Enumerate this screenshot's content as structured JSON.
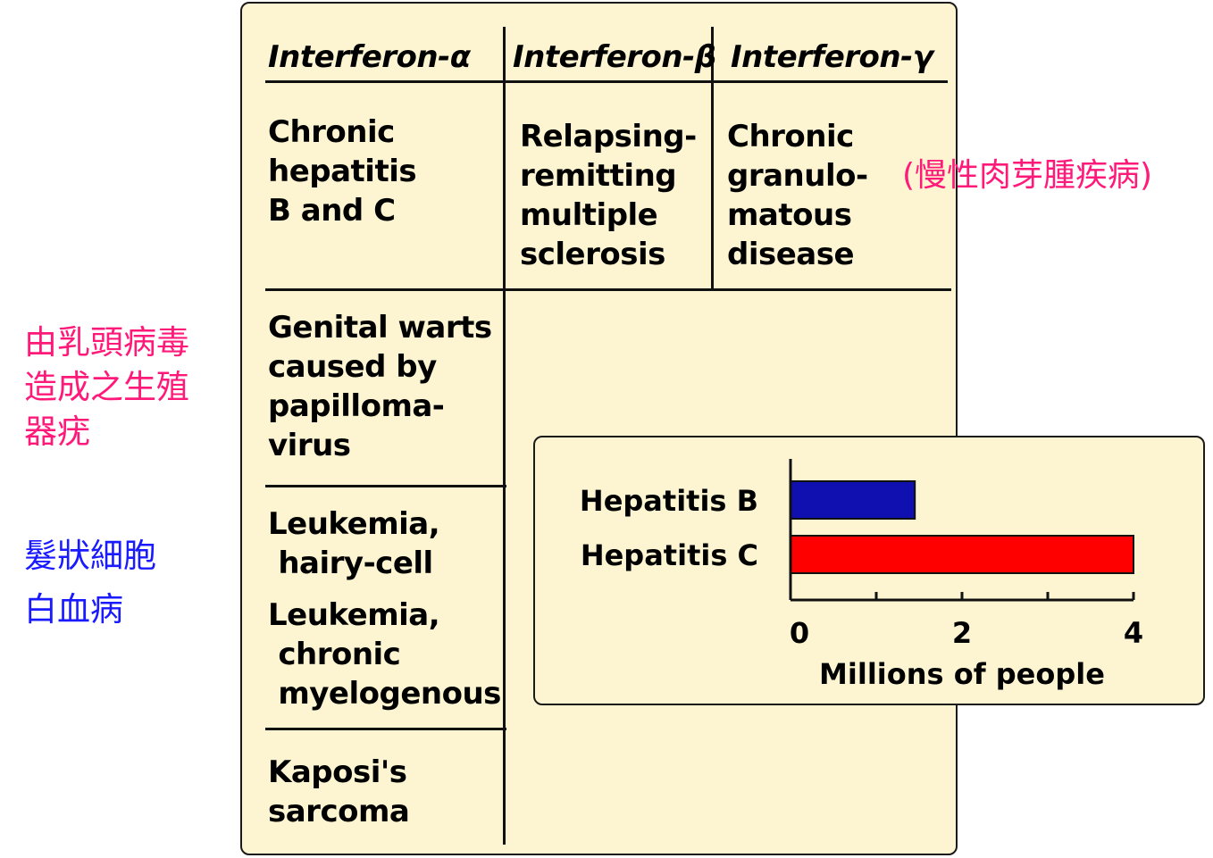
{
  "table": {
    "headers": [
      "Interferon-α",
      "Interferon-β",
      "Interferon-γ"
    ],
    "alpha_cells": [
      "Chronic\nhepatitis\nB and C",
      "Genital warts\ncaused by\npapilloma-\nvirus",
      "Leukemia,\n hairy-cell",
      "Leukemia,\n chronic\n myelogenous",
      "Kaposi's\nsarcoma"
    ],
    "beta_cells": [
      "Relapsing-\nremitting\nmultiple\nsclerosis"
    ],
    "gamma_cells": [
      "Chronic\ngranulo-\nmatous\ndisease"
    ]
  },
  "annotations": {
    "gamma_note": "(慢性肉芽腫疾病)",
    "warts_note": "由乳頭病毒\n造成之生殖\n器疣",
    "leukemia_note": "髮狀細胞\n白血病"
  },
  "colors": {
    "panel_bg": "#fdf5d2",
    "pink_note": "#ff1a7a",
    "blue_note": "#1a1aff"
  },
  "chart_data": {
    "type": "bar",
    "orientation": "horizontal",
    "categories": [
      "Hepatitis B",
      "Hepatitis C"
    ],
    "values": [
      1.45,
      4.0
    ],
    "colors": [
      "#1010b0",
      "#ff0000"
    ],
    "xlabel": "Millions of people",
    "xlim": [
      0,
      4
    ],
    "xticks": [
      0,
      1,
      2,
      3,
      4
    ],
    "xtick_labels": [
      "0",
      "",
      "2",
      "",
      "4"
    ]
  }
}
